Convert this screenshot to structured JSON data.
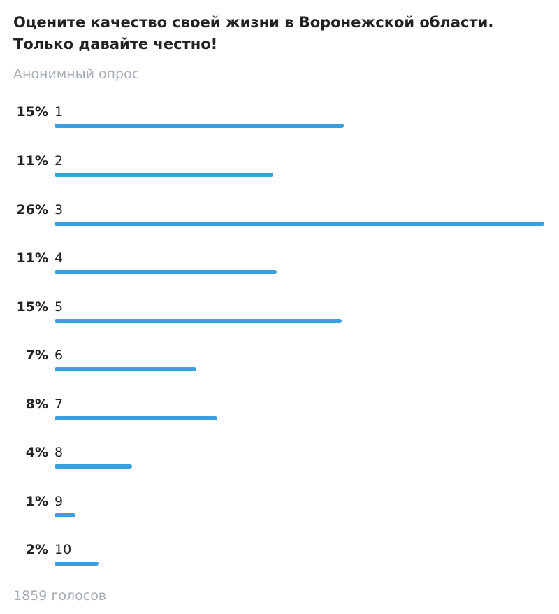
{
  "poll": {
    "question": "Оцените качество своей жизни в Воронежской области. Только давайте честно!",
    "type_label": "Анонимный опрос",
    "votes_label": "1859 голосов",
    "bar_color": "#3a9fe0",
    "options": [
      {
        "label": "1",
        "percent_text": "15%",
        "fill": 0.59
      },
      {
        "label": "2",
        "percent_text": "11%",
        "fill": 0.446
      },
      {
        "label": "3",
        "percent_text": "26%",
        "fill": 1.0
      },
      {
        "label": "4",
        "percent_text": "11%",
        "fill": 0.454
      },
      {
        "label": "5",
        "percent_text": "15%",
        "fill": 0.586
      },
      {
        "label": "6",
        "percent_text": "7%",
        "fill": 0.29
      },
      {
        "label": "7",
        "percent_text": "8%",
        "fill": 0.333
      },
      {
        "label": "8",
        "percent_text": "4%",
        "fill": 0.159
      },
      {
        "label": "9",
        "percent_text": "1%",
        "fill": 0.043
      },
      {
        "label": "10",
        "percent_text": "2%",
        "fill": 0.09
      }
    ]
  }
}
